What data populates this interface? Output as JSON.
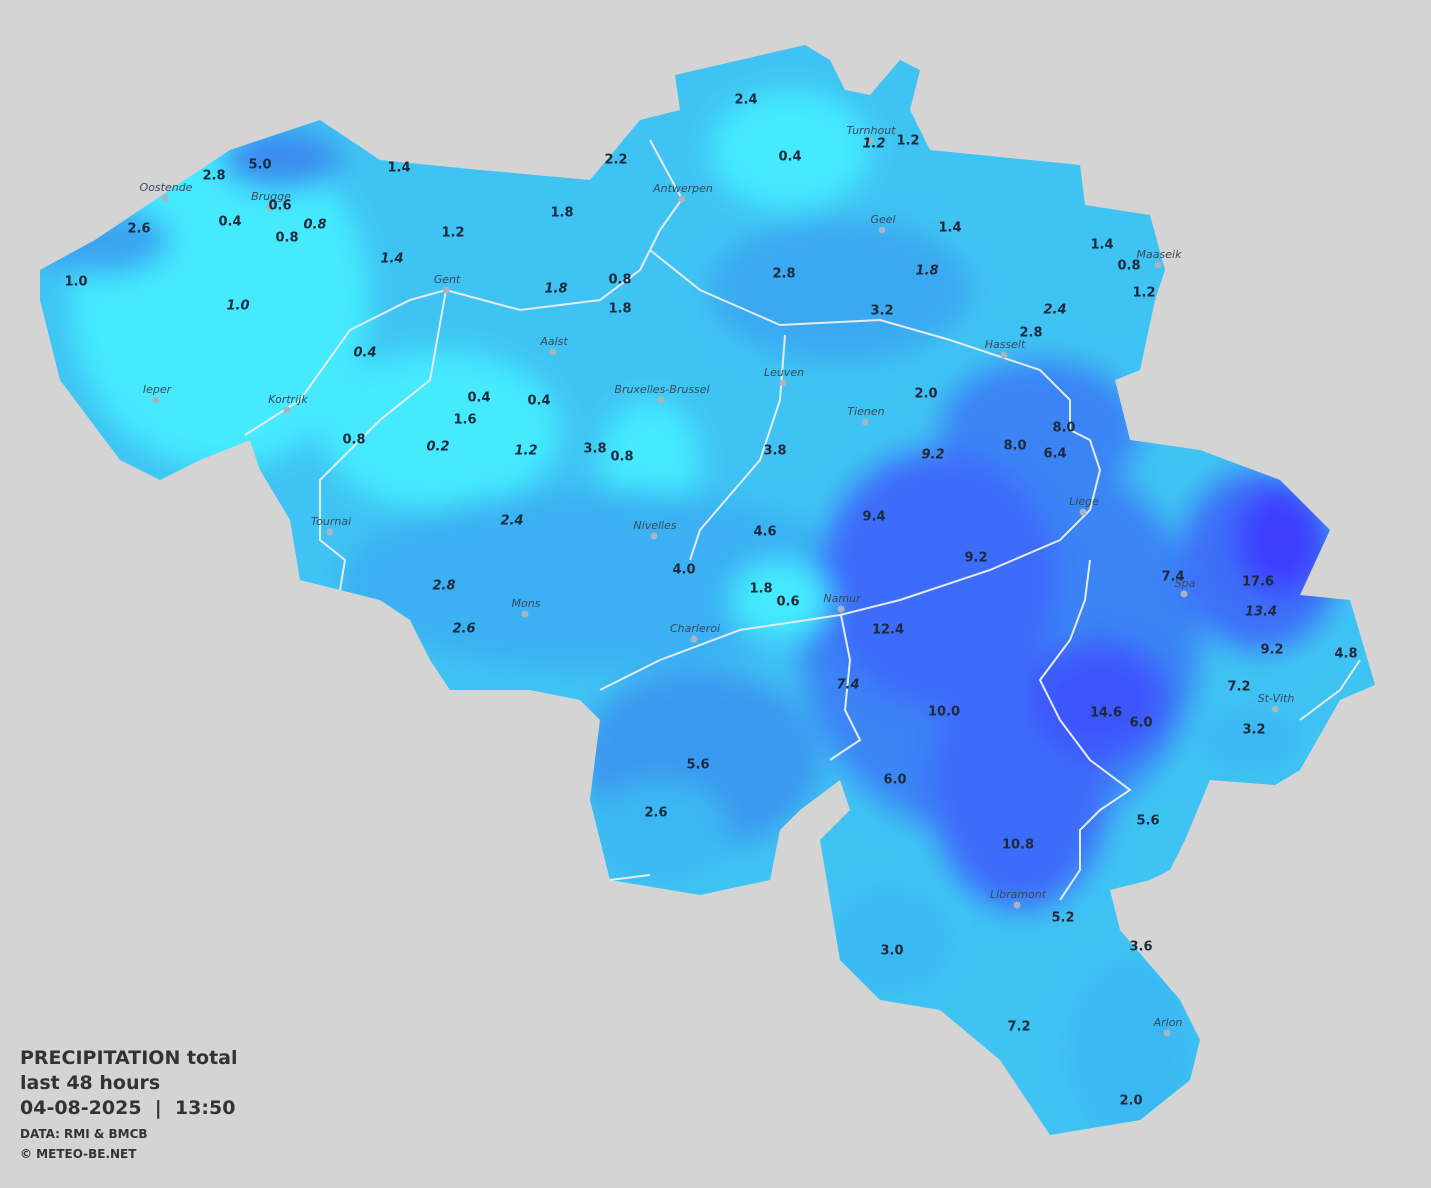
{
  "legend": {
    "title": "PRECIPITATION total",
    "period": "last 48 hours",
    "datetime": "04-08-2025  |  13:50",
    "source": "DATA: RMI & BMCB",
    "copyright": "© METEO-BE.NET"
  },
  "cities": [
    "Oostende",
    "Brugge",
    "Antwerpen",
    "Turnhout",
    "Geel",
    "Maaseik",
    "Gent",
    "Aalst",
    "Hasselt",
    "Leuven",
    "Ieper",
    "Bruxelles-Brussel",
    "Kortrijk",
    "Tienen",
    "Liege",
    "Tournai",
    "Nivelles",
    "Spa",
    "Namur",
    "Mons",
    "Charleroi",
    "St-Vith",
    "Libramont",
    "Arlon"
  ],
  "readings": [
    "2.4",
    "5.0",
    "2.8",
    "2.2",
    "0.4",
    "1.2",
    "1.4",
    "0.6",
    "0.4",
    "0.8",
    "2.6",
    "1.8",
    "1.2",
    "1.4",
    "1.4",
    "0.8",
    "1.0",
    "0.8",
    "2.8",
    "1.2",
    "1.8",
    "3.2",
    "2.8",
    "0.4",
    "0.4",
    "2.0",
    "1.6",
    "8.0",
    "0.8",
    "3.8",
    "0.8",
    "3.8",
    "8.0",
    "6.4",
    "9.4",
    "4.6",
    "9.2",
    "4.0",
    "7.4",
    "17.6",
    "1.8",
    "0.6",
    "12.4",
    "9.2",
    "4.8",
    "7.2",
    "10.0",
    "14.6",
    "6.0",
    "3.2",
    "5.6",
    "6.0",
    "2.6",
    "5.6",
    "10.8",
    "5.2",
    "3.6",
    "3.0",
    "7.2",
    "2.0"
  ],
  "readings_italic": [
    "1.2",
    "0.8",
    "1.4",
    "1.8",
    "1.0",
    "1.8",
    "2.4",
    "0.4",
    "0.2",
    "1.2",
    "9.2",
    "2.4",
    "2.8",
    "13.4",
    "2.6",
    "7.4"
  ]
}
